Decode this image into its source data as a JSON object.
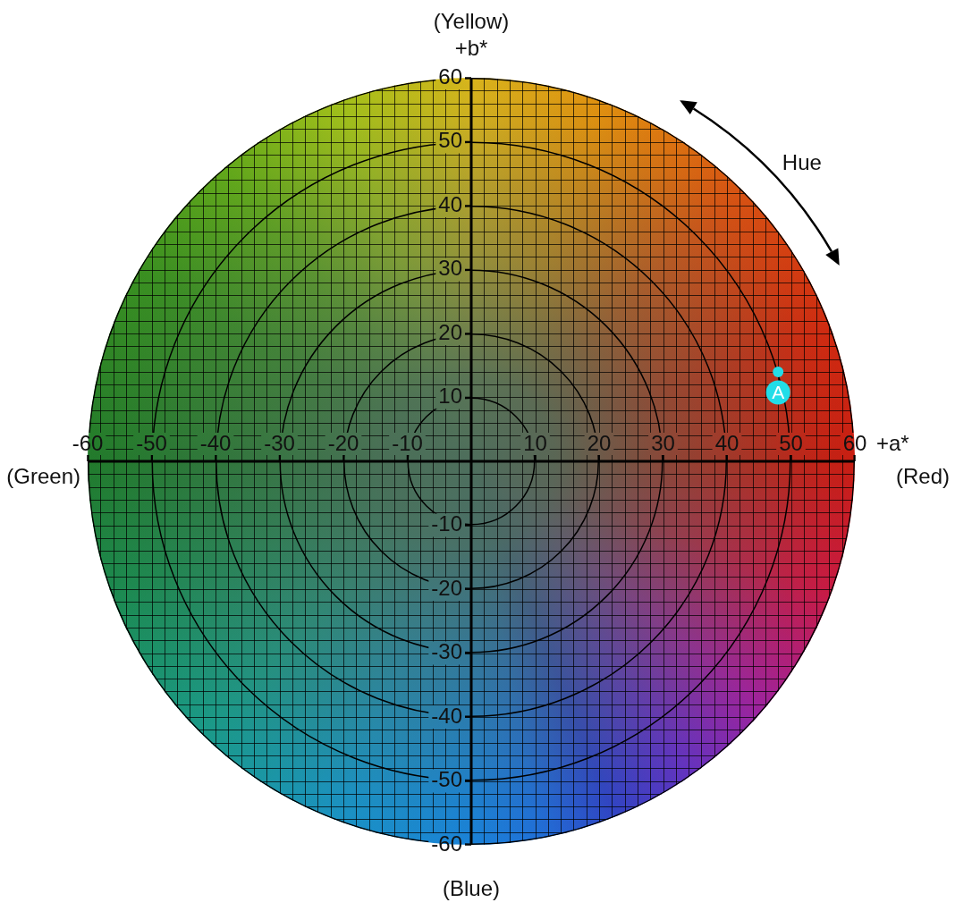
{
  "chart_data": {
    "type": "scatter",
    "xlabel": "+a*",
    "ylabel": "+b*",
    "x": [
      48
    ],
    "values": [
      14
    ],
    "color": "#22dde8",
    "marker": "circle",
    "xlim": [
      -60,
      60
    ],
    "ylim": [
      -60,
      60
    ],
    "xticks": [
      -60,
      {
        "value": -58,
        "label": null
      },
      {
        "value": -56,
        "label": null
      },
      {
        "value": -54,
        "label": null
      },
      {
        "value": -52,
        "label": null
      },
      -50,
      {
        "value": -48,
        "label": null
      },
      {
        "value": -46,
        "label": null
      },
      {
        "value": -44,
        "label": null
      },
      {
        "value": -42,
        "label": null
      },
      -40,
      {
        "value": -38,
        "label": null
      },
      {
        "value": -36,
        "label": null
      },
      {
        "value": -34,
        "label": null
      },
      {
        "value": -32,
        "label": null
      },
      -30,
      {
        "value": -28,
        "label": null
      },
      {
        "value": -26,
        "label": null
      },
      {
        "value": -24,
        "label": null
      },
      {
        "value": -22,
        "label": null
      },
      -20,
      {
        "value": -18,
        "label": null
      },
      {
        "value": -16,
        "label": null
      },
      {
        "value": -14,
        "label": null
      },
      {
        "value": -12,
        "label": null
      },
      -10,
      {
        "value": -8,
        "label": null
      },
      {
        "value": -6,
        "label": null
      },
      {
        "value": -4,
        "label": null
      },
      {
        "value": -2,
        "label": null
      },
      {
        "value": 0,
        "label": null
      },
      {
        "value": 2,
        "label": null
      },
      {
        "value": 4,
        "label": null
      },
      {
        "value": 6,
        "label": null
      },
      {
        "value": 8,
        "label": null
      },
      10,
      {
        "value": 12,
        "label": null
      },
      {
        "value": 14,
        "label": null
      },
      {
        "value": 16,
        "label": null
      },
      {
        "value": 18,
        "label": null
      },
      20,
      {
        "value": 22,
        "label": null
      },
      {
        "value": 24,
        "label": null
      },
      {
        "value": 26,
        "label": null
      },
      {
        "value": 28,
        "label": null
      },
      30,
      {
        "value": 32,
        "label": null
      },
      {
        "value": 34,
        "label": null
      },
      {
        "value": 36,
        "label": null
      },
      {
        "value": 38,
        "label": null
      },
      40,
      {
        "value": 42,
        "label": null
      },
      {
        "value": 44,
        "label": null
      },
      {
        "value": 46,
        "label": null
      },
      {
        "value": 48,
        "label": null
      },
      50,
      {
        "value": 52,
        "label": null
      },
      {
        "value": 54,
        "label": null
      },
      {
        "value": 56,
        "label": null
      },
      {
        "value": 58,
        "label": null
      },
      60
    ],
    "yticks": [
      -60,
      {
        "value": -58,
        "label": null
      },
      {
        "value": -56,
        "label": null
      },
      {
        "value": -54,
        "label": null
      },
      {
        "value": -52,
        "label": null
      },
      -50,
      {
        "value": -48,
        "label": null
      },
      {
        "value": -46,
        "label": null
      },
      {
        "value": -44,
        "label": null
      },
      {
        "value": -42,
        "label": null
      },
      -40,
      {
        "value": -38,
        "label": null
      },
      {
        "value": -36,
        "label": null
      },
      {
        "value": -34,
        "label": null
      },
      {
        "value": -32,
        "label": null
      },
      -30,
      {
        "value": -28,
        "label": null
      },
      {
        "value": -26,
        "label": null
      },
      {
        "value": -24,
        "label": null
      },
      {
        "value": -22,
        "label": null
      },
      -20,
      {
        "value": -18,
        "label": null
      },
      {
        "value": -16,
        "label": null
      },
      {
        "value": -14,
        "label": null
      },
      {
        "value": -12,
        "label": null
      },
      -10,
      {
        "value": -8,
        "label": null
      },
      {
        "value": -6,
        "label": null
      },
      {
        "value": -4,
        "label": null
      },
      {
        "value": -2,
        "label": null
      },
      {
        "value": 0,
        "label": null
      },
      {
        "value": 2,
        "label": null
      },
      {
        "value": 4,
        "label": null
      },
      {
        "value": 6,
        "label": null
      },
      {
        "value": 8,
        "label": null
      },
      10,
      {
        "value": 12,
        "label": null
      },
      {
        "value": 14,
        "label": null
      },
      {
        "value": 16,
        "label": null
      },
      {
        "value": 18,
        "label": null
      },
      20,
      {
        "value": 22,
        "label": null
      },
      {
        "value": 24,
        "label": null
      },
      {
        "value": 26,
        "label": null
      },
      {
        "value": 28,
        "label": null
      },
      30,
      {
        "value": 32,
        "label": null
      },
      {
        "value": 34,
        "label": null
      },
      {
        "value": 36,
        "label": null
      },
      {
        "value": 38,
        "label": null
      },
      40,
      {
        "value": 42,
        "label": null
      },
      {
        "value": 44,
        "label": null
      },
      {
        "value": 46,
        "label": null
      },
      {
        "value": 48,
        "label": null
      },
      50,
      {
        "value": 52,
        "label": null
      },
      {
        "value": 54,
        "label": null
      },
      {
        "value": 56,
        "label": null
      },
      {
        "value": 58,
        "label": null
      },
      60
    ],
    "grid": true,
    "annotations": [
      {
        "text": "A",
        "x": 48,
        "y": 14
      },
      "Hue",
      "(Yellow)",
      "(Green)",
      "(Red)",
      "(Blue)"
    ]
  }
}
